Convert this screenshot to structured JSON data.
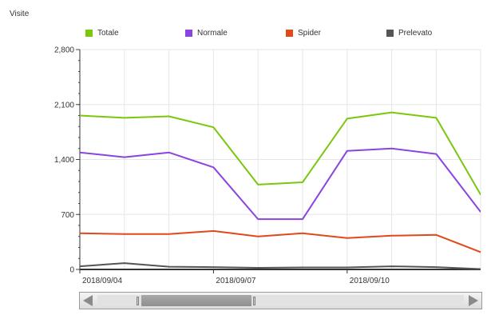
{
  "chart_data": {
    "type": "line",
    "ylabel": "Visite",
    "ylim": [
      0,
      2800
    ],
    "y_ticks": [
      0,
      700,
      1400,
      2100,
      2800
    ],
    "y_tick_labels": [
      "0",
      "700",
      "1,400",
      "2,100",
      "2,800"
    ],
    "x_tick_labels": [
      "2018/09/04",
      "2018/09/07",
      "2018/09/10"
    ],
    "grid": true,
    "legend_position": "top",
    "x": [
      "2018/09/04",
      "2018/09/05",
      "2018/09/06",
      "2018/09/07",
      "2018/09/08",
      "2018/09/09",
      "2018/09/10",
      "2018/09/11",
      "2018/09/12",
      "2018/09/13"
    ],
    "series": [
      {
        "name": "Totale",
        "color": "#7ac70c",
        "values": [
          1960,
          1930,
          1950,
          1810,
          1080,
          1110,
          1920,
          2000,
          1930,
          950
        ]
      },
      {
        "name": "Normale",
        "color": "#8a44e0",
        "values": [
          1490,
          1430,
          1490,
          1300,
          640,
          640,
          1510,
          1540,
          1470,
          730
        ]
      },
      {
        "name": "Spider",
        "color": "#e0491a",
        "values": [
          460,
          450,
          450,
          490,
          420,
          460,
          400,
          430,
          440,
          220
        ]
      },
      {
        "name": "Prelevato",
        "color": "#555555",
        "values": [
          40,
          80,
          35,
          30,
          20,
          25,
          25,
          40,
          30,
          5
        ]
      }
    ]
  },
  "scrollbar": {
    "thumb_start": 0.12,
    "thumb_end": 0.42
  }
}
